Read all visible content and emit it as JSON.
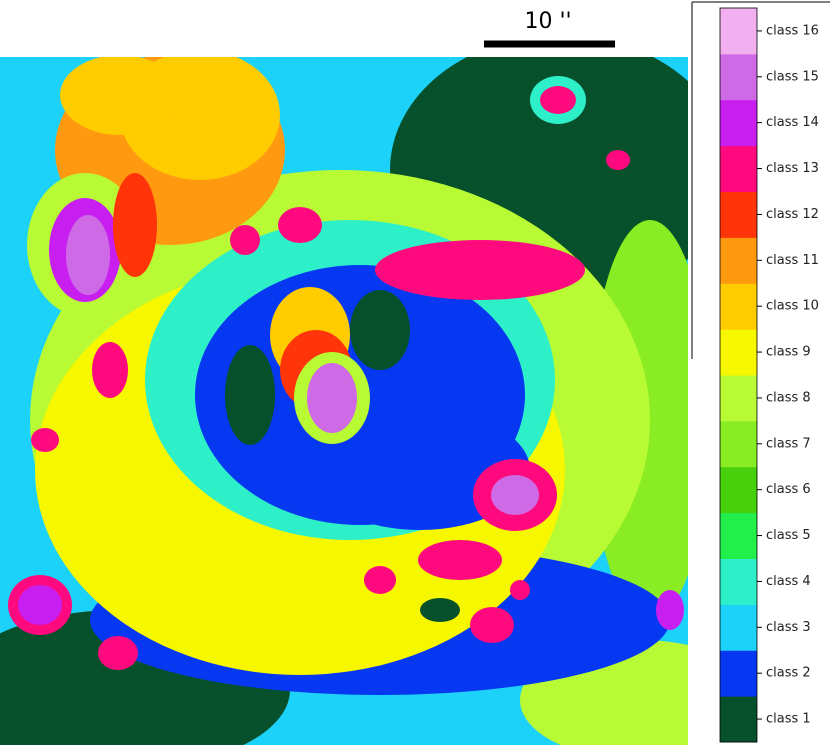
{
  "scale_bar": {
    "label": "10 ''"
  },
  "colorbar": {
    "classes": [
      {
        "name": "class 1",
        "color": "#06512b"
      },
      {
        "name": "class 2",
        "color": "#0538f0"
      },
      {
        "name": "class 3",
        "color": "#1cd2f8"
      },
      {
        "name": "class 4",
        "color": "#2ef0c8"
      },
      {
        "name": "class 5",
        "color": "#22ee4c"
      },
      {
        "name": "class 6",
        "color": "#48d00c"
      },
      {
        "name": "class 7",
        "color": "#8aec22"
      },
      {
        "name": "class 8",
        "color": "#b8fb34"
      },
      {
        "name": "class 9",
        "color": "#f7f700"
      },
      {
        "name": "class 10",
        "color": "#ffcc00"
      },
      {
        "name": "class 11",
        "color": "#ff9a10"
      },
      {
        "name": "class 12",
        "color": "#ff3408"
      },
      {
        "name": "class 13",
        "color": "#ff0a7e"
      },
      {
        "name": "class 14",
        "color": "#c81ef0"
      },
      {
        "name": "class 15",
        "color": "#ce6ae6"
      },
      {
        "name": "class 16",
        "color": "#f2b0f0"
      }
    ]
  }
}
